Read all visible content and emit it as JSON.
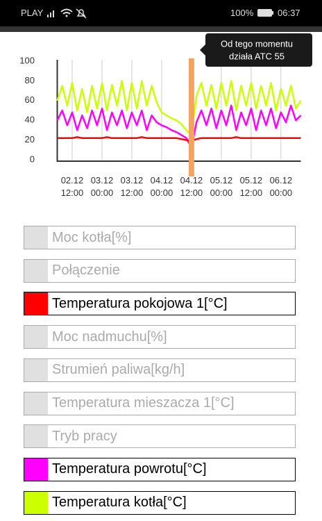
{
  "status_bar": {
    "carrier": "PLAY",
    "battery": "100%",
    "time": "06:37"
  },
  "chart_data": {
    "type": "line",
    "x": [
      "02.12 06:00",
      "02.12 08:00",
      "02.12 10:00",
      "02.12 12:00",
      "02.12 14:00",
      "02.12 16:00",
      "02.12 18:00",
      "02.12 20:00",
      "02.12 22:00",
      "03.12 00:00",
      "03.12 02:00",
      "03.12 04:00",
      "03.12 06:00",
      "03.12 08:00",
      "03.12 10:00",
      "03.12 12:00",
      "03.12 14:00",
      "03.12 16:00",
      "03.12 18:00",
      "03.12 20:00",
      "03.12 22:00",
      "04.12 00:00",
      "04.12 02:00",
      "04.12 04:00",
      "04.12 06:00",
      "04.12 08:00",
      "04.12 10:00",
      "04.12 12:00",
      "04.12 14:00",
      "04.12 16:00",
      "04.12 18:00",
      "04.12 20:00",
      "04.12 22:00",
      "05.12 00:00",
      "05.12 02:00",
      "05.12 04:00",
      "05.12 06:00",
      "05.12 08:00",
      "05.12 10:00",
      "05.12 12:00",
      "05.12 14:00",
      "05.12 16:00",
      "05.12 18:00",
      "05.12 20:00",
      "05.12 22:00",
      "06.12 00:00",
      "06.12 02:00",
      "06.12 04:00",
      "06.12 06:00",
      "06.12 08:00"
    ],
    "ylim": [
      0,
      100
    ],
    "yticks": [
      0,
      20,
      40,
      60,
      80,
      100
    ],
    "xticks": [
      "02.12 12:00",
      "03.12 00:00",
      "03.12 12:00",
      "04.12 00:00",
      "04.12 12:00",
      "05.12 00:00",
      "05.12 12:00",
      "06.12 00:00"
    ],
    "grid": true,
    "series": [
      {
        "name": "Temperatura pokojowa 1[°C]",
        "color": "#ff0000",
        "values": [
          22,
          22,
          22,
          22,
          23,
          22,
          22,
          22,
          22,
          22,
          23,
          22,
          22,
          22,
          22,
          22,
          22,
          23,
          22,
          22,
          22,
          22,
          22,
          22,
          22,
          21,
          20,
          19,
          21,
          22,
          22,
          22,
          22,
          22,
          22,
          22,
          23,
          22,
          22,
          22,
          22,
          22,
          22,
          22,
          22,
          22,
          22,
          22,
          22,
          22
        ]
      },
      {
        "name": "Temperatura powrotu[°C]",
        "color": "#ff00ff",
        "values": [
          40,
          50,
          35,
          48,
          30,
          45,
          32,
          50,
          35,
          52,
          30,
          48,
          35,
          50,
          32,
          48,
          35,
          50,
          30,
          45,
          38,
          35,
          33,
          30,
          28,
          25,
          22,
          12,
          38,
          50,
          35,
          52,
          32,
          50,
          35,
          55,
          30,
          48,
          35,
          52,
          30,
          50,
          35,
          52,
          32,
          48,
          38,
          55,
          40,
          45
        ]
      },
      {
        "name": "Temperatura kotła[°C]",
        "color": "#ccff00",
        "values": [
          60,
          75,
          55,
          78,
          50,
          72,
          48,
          75,
          52,
          78,
          50,
          76,
          55,
          80,
          50,
          78,
          52,
          80,
          55,
          75,
          58,
          48,
          45,
          42,
          40,
          36,
          30,
          25,
          65,
          78,
          55,
          76,
          52,
          78,
          55,
          80,
          50,
          75,
          55,
          78,
          52,
          75,
          55,
          78,
          50,
          72,
          55,
          75,
          52,
          60
        ]
      }
    ],
    "hidden_series": [
      "Moc kotła[%]",
      "Połączenie",
      "Moc nadmuchu[%]",
      "Strumień paliwa[kg/h]",
      "Temperatura mieszacza 1[°C]",
      "Tryb pracy"
    ],
    "annotation": {
      "x": "04.12 12:00",
      "color": "#f4a460",
      "text": [
        "Od tego momentu",
        "działa ATC 55"
      ]
    }
  }
}
